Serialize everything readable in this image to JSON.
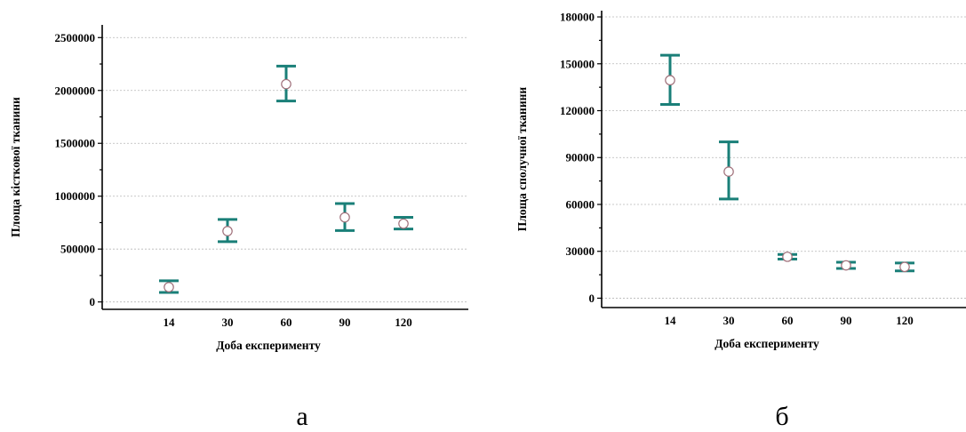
{
  "chart_data": [
    {
      "type": "scatter",
      "panel_label": "а",
      "xlabel": "Доба експерименту",
      "ylabel": "Площа кісткової тканини",
      "categories": [
        "14",
        "30",
        "60",
        "90",
        "120"
      ],
      "ylim": [
        -70000,
        2620000
      ],
      "yticks": [
        "0",
        "500000",
        "1000000",
        "1500000",
        "2000000",
        "2500000"
      ],
      "grid": true,
      "series": [
        {
          "values": [
            140000,
            670000,
            2060000,
            800000,
            740000
          ],
          "lower": [
            90000,
            570000,
            1900000,
            675000,
            690000
          ],
          "upper": [
            200000,
            780000,
            2230000,
            930000,
            800000
          ]
        }
      ],
      "colors": {
        "error_bar": "#1a7f78",
        "marker_edge": "#a0707a"
      }
    },
    {
      "type": "scatter",
      "panel_label": "б",
      "xlabel": "Доба експерименту",
      "ylabel": "Площа сполучної тканини",
      "categories": [
        "14",
        "30",
        "60",
        "90",
        "120"
      ],
      "ylim": [
        -6000,
        184000
      ],
      "yticks": [
        "0",
        "30000",
        "60000",
        "90000",
        "120000",
        "150000",
        "180000"
      ],
      "grid": true,
      "series": [
        {
          "values": [
            139500,
            81000,
            26500,
            21000,
            20000
          ],
          "lower": [
            124000,
            63500,
            25000,
            19000,
            17500
          ],
          "upper": [
            155500,
            100000,
            28000,
            23000,
            22500
          ]
        }
      ],
      "colors": {
        "error_bar": "#1a7f78",
        "marker_edge": "#a0707a"
      }
    }
  ]
}
